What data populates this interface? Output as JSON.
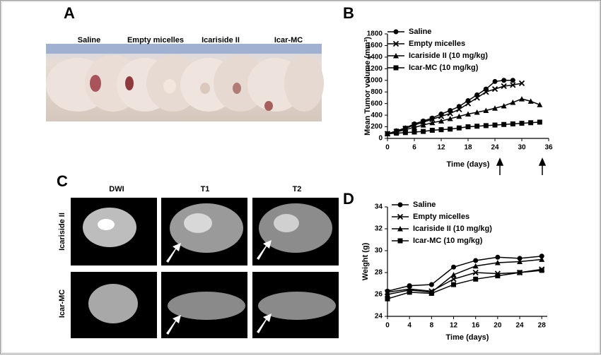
{
  "figure": {
    "panel_labels": [
      "A",
      "B",
      "C",
      "D"
    ],
    "photo_labels": [
      "Saline",
      "Empty micelles",
      "Icariside II",
      "Icar-MC"
    ],
    "mri_columns": [
      "DWI",
      "T1",
      "T2"
    ],
    "mri_rows": [
      "Icariside II",
      "Icar-MC"
    ]
  },
  "chart_data": [
    {
      "type": "line",
      "x_label": "Time (days)",
      "y_label": "Mean Tumor volume (mm³)",
      "xlim": [
        0,
        36
      ],
      "ylim": [
        0,
        1800
      ],
      "xticks": [
        0,
        6,
        12,
        18,
        24,
        30,
        36
      ],
      "yticks": [
        0,
        200,
        400,
        600,
        800,
        1000,
        1200,
        1400,
        1600,
        1800
      ],
      "x": [
        0,
        2,
        4,
        6,
        8,
        10,
        12,
        14,
        16,
        18,
        20,
        22,
        24,
        26,
        28,
        30,
        32,
        34
      ],
      "series": [
        {
          "name": "Saline",
          "color": "#000000",
          "marker": "circle",
          "values": [
            80,
            130,
            180,
            250,
            300,
            350,
            420,
            480,
            550,
            650,
            750,
            850,
            980,
            1000,
            1000,
            null,
            null,
            null
          ]
        },
        {
          "name": "Empty micelles",
          "color": "#000000",
          "marker": "x",
          "values": [
            80,
            120,
            170,
            230,
            280,
            330,
            380,
            430,
            500,
            600,
            700,
            800,
            850,
            900,
            920,
            950,
            null,
            null
          ]
        },
        {
          "name": "Icariside II (10 mg/kg)",
          "color": "#000000",
          "marker": "triangle",
          "values": [
            80,
            110,
            150,
            190,
            230,
            270,
            300,
            340,
            380,
            420,
            450,
            480,
            520,
            560,
            620,
            680,
            640,
            580
          ]
        },
        {
          "name": "Icar-MC (10 mg/kg)",
          "color": "#000000",
          "marker": "square",
          "values": [
            80,
            90,
            100,
            110,
            120,
            140,
            150,
            160,
            180,
            200,
            210,
            220,
            230,
            240,
            250,
            260,
            270,
            280
          ]
        }
      ]
    },
    {
      "type": "line",
      "x_label": "Time (days)",
      "y_label": "Weight (g)",
      "xlim": [
        0,
        29
      ],
      "ylim": [
        24,
        34
      ],
      "xticks": [
        0,
        4,
        8,
        12,
        16,
        20,
        24,
        28
      ],
      "yticks": [
        24,
        26,
        28,
        30,
        32,
        34
      ],
      "x": [
        0,
        4,
        8,
        12,
        16,
        20,
        24,
        28
      ],
      "series": [
        {
          "name": "Saline",
          "color": "#000000",
          "marker": "circle",
          "values": [
            26.3,
            26.8,
            26.9,
            28.5,
            29.1,
            29.4,
            29.3,
            29.5
          ]
        },
        {
          "name": "Empty micelles",
          "color": "#000000",
          "marker": "x",
          "values": [
            26.2,
            26.5,
            26.3,
            27.4,
            28.0,
            27.9,
            28.0,
            28.3
          ]
        },
        {
          "name": "Icariside II (10 mg/kg)",
          "color": "#000000",
          "marker": "triangle",
          "values": [
            26.0,
            26.4,
            26.2,
            27.8,
            28.6,
            28.9,
            29.0,
            29.2
          ]
        },
        {
          "name": "Icar-MC (10 mg/kg)",
          "color": "#000000",
          "marker": "square",
          "values": [
            25.6,
            26.2,
            26.1,
            26.9,
            27.4,
            27.7,
            28.0,
            28.2
          ]
        }
      ]
    }
  ]
}
